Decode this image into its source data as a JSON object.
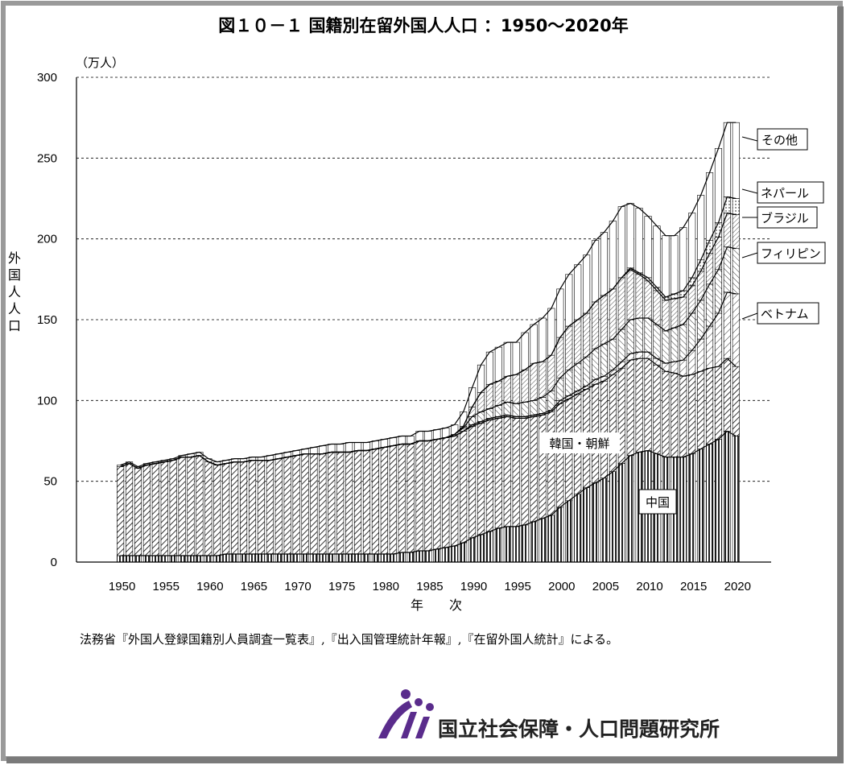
{
  "chart_data": {
    "type": "bar",
    "stacked": true,
    "title": "図１０－１ 国籍別在留外国人人口 ：1950～2020年",
    "unit_label": "（万人）",
    "ylabel": "外国人人口",
    "xlabel": "年　　次",
    "ylim": [
      0,
      300
    ],
    "yticks": [
      0,
      50,
      100,
      150,
      200,
      250,
      300
    ],
    "xticks": [
      1950,
      1955,
      1960,
      1965,
      1970,
      1975,
      1980,
      1985,
      1990,
      1995,
      2000,
      2005,
      2010,
      2015,
      2020
    ],
    "grid": true,
    "x": [
      1950,
      1951,
      1952,
      1953,
      1954,
      1955,
      1956,
      1957,
      1958,
      1959,
      1960,
      1961,
      1962,
      1963,
      1964,
      1965,
      1966,
      1967,
      1968,
      1969,
      1970,
      1971,
      1972,
      1973,
      1974,
      1975,
      1976,
      1977,
      1978,
      1979,
      1980,
      1981,
      1982,
      1983,
      1984,
      1985,
      1986,
      1987,
      1988,
      1989,
      1990,
      1991,
      1992,
      1993,
      1994,
      1995,
      1996,
      1997,
      1998,
      1999,
      2000,
      2001,
      2002,
      2003,
      2004,
      2005,
      2006,
      2007,
      2008,
      2009,
      2010,
      2011,
      2012,
      2013,
      2014,
      2015,
      2016,
      2017,
      2018,
      2019,
      2020
    ],
    "series": [
      {
        "name": "中国",
        "values": [
          4,
          4,
          4,
          4,
          4,
          4,
          4,
          4,
          4,
          4,
          4,
          4,
          5,
          5,
          5,
          5,
          5,
          5,
          5,
          5,
          5,
          5,
          5,
          5,
          5,
          5,
          5,
          5,
          5,
          5,
          5,
          5,
          6,
          6,
          7,
          7,
          8,
          9,
          10,
          12,
          15,
          17,
          19,
          21,
          22,
          22,
          23,
          25,
          27,
          29,
          34,
          38,
          42,
          46,
          49,
          52,
          56,
          61,
          66,
          68,
          69,
          67,
          65,
          65,
          65,
          67,
          70,
          73,
          76,
          81,
          78
        ]
      },
      {
        "name": "韓国・朝鮮",
        "values": [
          55,
          57,
          54,
          56,
          57,
          58,
          59,
          61,
          61,
          62,
          58,
          56,
          56,
          57,
          57,
          58,
          58,
          58,
          59,
          60,
          61,
          62,
          62,
          62,
          63,
          63,
          63,
          64,
          64,
          65,
          66,
          67,
          67,
          67,
          68,
          68,
          68,
          68,
          68,
          69,
          69,
          69,
          69,
          68,
          68,
          67,
          66,
          65,
          64,
          64,
          64,
          63,
          62,
          61,
          61,
          60,
          60,
          59,
          59,
          58,
          57,
          55,
          53,
          52,
          50,
          49,
          48,
          47,
          45,
          45,
          43
        ]
      },
      {
        "name": "ベトナム",
        "values": [
          0,
          0,
          0,
          0,
          0,
          0,
          0,
          0,
          0,
          0,
          0,
          0,
          0,
          0,
          0,
          0,
          0,
          0,
          0,
          0,
          0,
          0,
          0,
          0,
          0,
          0,
          0,
          0,
          0,
          0,
          0,
          0,
          0,
          0,
          0,
          0,
          0,
          0,
          0,
          0,
          1,
          1,
          1,
          1,
          1,
          1,
          1,
          1,
          1,
          1,
          2,
          2,
          2,
          2,
          3,
          3,
          3,
          4,
          4,
          4,
          4,
          4,
          5,
          7,
          10,
          15,
          20,
          26,
          33,
          41,
          45
        ]
      },
      {
        "name": "フィリピン",
        "values": [
          0,
          0,
          0,
          0,
          0,
          0,
          0,
          0,
          0,
          0,
          0,
          0,
          0,
          0,
          0,
          0,
          0,
          0,
          0,
          0,
          0,
          0,
          0,
          0,
          0,
          0,
          0,
          0,
          0,
          0,
          0,
          0,
          0,
          0,
          0,
          0,
          0,
          0,
          1,
          2,
          5,
          6,
          6,
          7,
          8,
          8,
          9,
          9,
          10,
          12,
          14,
          16,
          17,
          18,
          19,
          20,
          19,
          20,
          21,
          21,
          21,
          21,
          20,
          21,
          22,
          23,
          24,
          26,
          27,
          28,
          28
        ]
      },
      {
        "name": "ブラジル",
        "values": [
          0,
          0,
          0,
          0,
          0,
          0,
          0,
          0,
          0,
          0,
          0,
          0,
          0,
          0,
          0,
          0,
          0,
          0,
          0,
          0,
          0,
          0,
          0,
          0,
          0,
          0,
          0,
          0,
          0,
          0,
          0,
          0,
          0,
          0,
          0,
          0,
          0,
          0,
          0,
          1,
          6,
          12,
          15,
          15,
          16,
          18,
          20,
          23,
          22,
          22,
          25,
          27,
          27,
          27,
          29,
          30,
          31,
          32,
          31,
          27,
          23,
          21,
          19,
          18,
          17,
          17,
          18,
          19,
          20,
          21,
          21
        ]
      },
      {
        "name": "ネパール",
        "values": [
          0,
          0,
          0,
          0,
          0,
          0,
          0,
          0,
          0,
          0,
          0,
          0,
          0,
          0,
          0,
          0,
          0,
          0,
          0,
          0,
          0,
          0,
          0,
          0,
          0,
          0,
          0,
          0,
          0,
          0,
          0,
          0,
          0,
          0,
          0,
          0,
          0,
          0,
          0,
          0,
          0,
          0,
          0,
          0,
          0,
          0,
          0,
          0,
          0,
          0,
          0,
          0,
          0,
          0,
          0,
          0,
          0,
          0,
          1,
          1,
          2,
          2,
          2,
          3,
          4,
          5,
          7,
          8,
          9,
          10,
          10
        ]
      },
      {
        "name": "その他",
        "values": [
          1,
          1,
          1,
          1,
          1,
          1,
          1,
          1,
          2,
          2,
          2,
          2,
          2,
          2,
          2,
          2,
          2,
          3,
          3,
          3,
          3,
          3,
          4,
          5,
          5,
          5,
          6,
          5,
          5,
          5,
          5,
          5,
          5,
          5,
          6,
          6,
          6,
          6,
          6,
          9,
          12,
          17,
          20,
          21,
          21,
          20,
          23,
          24,
          27,
          29,
          30,
          32,
          34,
          36,
          38,
          39,
          42,
          44,
          40,
          40,
          38,
          38,
          38,
          36,
          39,
          40,
          40,
          42,
          46,
          46,
          47
        ]
      }
    ],
    "labels": {
      "china": "中国",
      "korea": "韓国・朝鮮",
      "vietnam": "ベトナム",
      "philippines": "フィリピン",
      "brazil": "ブラジル",
      "nepal": "ネパール",
      "other": "その他"
    },
    "source": "法務省『外国人登録国籍別人員調査一覧表』,『出入国管理統計年報』,『在留外国人統計』による。"
  },
  "logo": {
    "organization": "国立社会保障・人口問題研究所",
    "mark_color": "#5a2c8c"
  },
  "colors": {
    "bar_edge": "#000000",
    "background": "#ffffff",
    "frame_shadow": "#8a8a8a"
  }
}
